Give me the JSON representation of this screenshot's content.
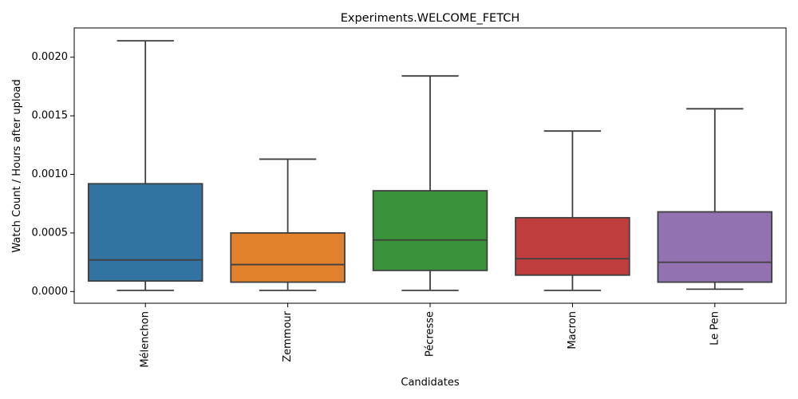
{
  "chart_data": {
    "type": "box",
    "title": "Experiments.WELCOME_FETCH",
    "xlabel": "Candidates",
    "ylabel": "Watch Count / Hours after upload",
    "ylim": [
      -0.0001,
      0.00225
    ],
    "yticks": [
      0.0,
      0.0005,
      0.001,
      0.0015,
      0.002
    ],
    "ytick_labels": [
      "0.0000",
      "0.0005",
      "0.0010",
      "0.0015",
      "0.0020"
    ],
    "grid": false,
    "categories": [
      "Mélenchon",
      "Zemmour",
      "Pécresse",
      "Macron",
      "Le Pen"
    ],
    "boxes": [
      {
        "category": "Mélenchon",
        "whisker_low": 1e-05,
        "q1": 9e-05,
        "median": 0.00027,
        "q3": 0.00092,
        "whisker_high": 0.00214,
        "color": "#3274a1"
      },
      {
        "category": "Zemmour",
        "whisker_low": 1e-05,
        "q1": 8e-05,
        "median": 0.00023,
        "q3": 0.0005,
        "whisker_high": 0.00113,
        "color": "#e1812c"
      },
      {
        "category": "Pécresse",
        "whisker_low": 1e-05,
        "q1": 0.00018,
        "median": 0.00044,
        "q3": 0.00086,
        "whisker_high": 0.00184,
        "color": "#3a923a"
      },
      {
        "category": "Macron",
        "whisker_low": 1e-05,
        "q1": 0.00014,
        "median": 0.00028,
        "q3": 0.00063,
        "whisker_high": 0.00137,
        "color": "#c03d3e"
      },
      {
        "category": "Le Pen",
        "whisker_low": 2e-05,
        "q1": 8e-05,
        "median": 0.00025,
        "q3": 0.00068,
        "whisker_high": 0.00156,
        "color": "#9372b2"
      }
    ]
  }
}
